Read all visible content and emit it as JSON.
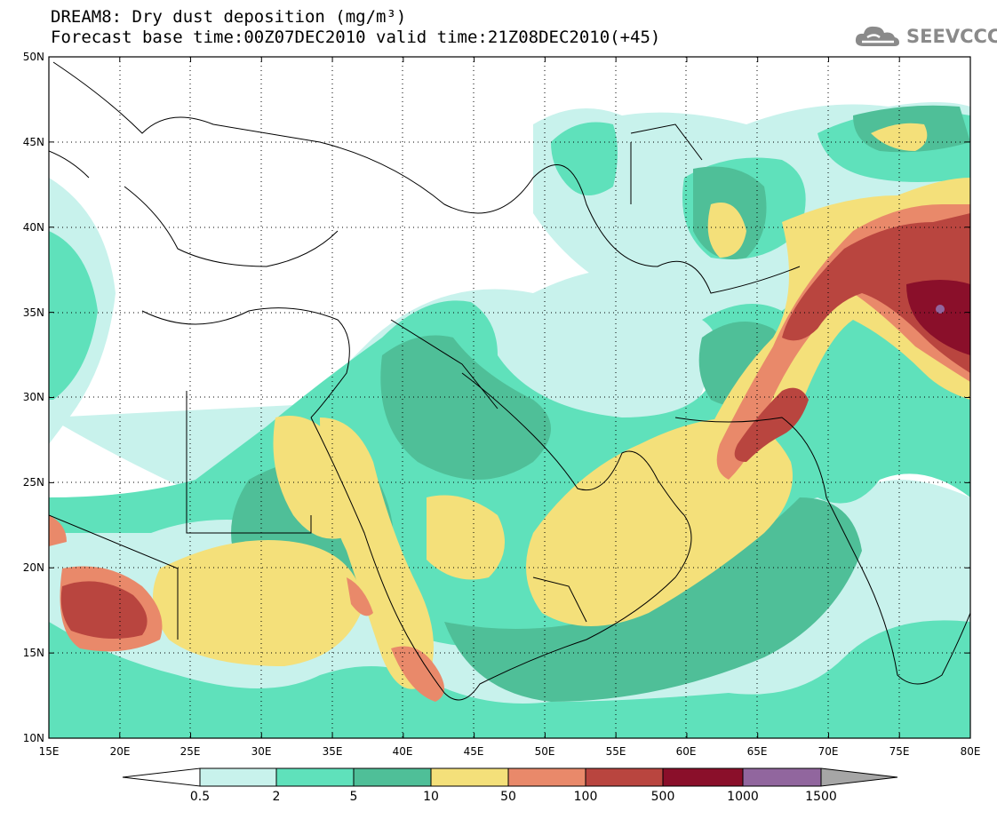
{
  "header": {
    "title": "DREAM8: Dry dust deposition (mg/m³)",
    "subtitle": "Forecast base time:00Z07DEC2010 valid time:21Z08DEC2010(+45)"
  },
  "logo": {
    "text": "SEEVCCC",
    "icon": "cloud-icon"
  },
  "map": {
    "lon_range": [
      15,
      80
    ],
    "lat_range": [
      10,
      50
    ],
    "lon_ticks": [
      "15E",
      "20E",
      "25E",
      "30E",
      "35E",
      "40E",
      "45E",
      "50E",
      "55E",
      "60E",
      "65E",
      "70E",
      "75E",
      "80E"
    ],
    "lat_ticks": [
      "10N",
      "15N",
      "20N",
      "25N",
      "30N",
      "35N",
      "40N",
      "45N",
      "50N"
    ],
    "grid": "dotted"
  },
  "colorbar": {
    "labels": [
      "0.5",
      "2",
      "5",
      "10",
      "50",
      "100",
      "500",
      "1000",
      "1500"
    ],
    "colors": [
      "#ffffff",
      "#c8f2ec",
      "#5fe1bb",
      "#4fbf98",
      "#f4e07a",
      "#e9896a",
      "#b9453f",
      "#8a0f2a",
      "#91669e",
      "#a6a6a6"
    ]
  }
}
